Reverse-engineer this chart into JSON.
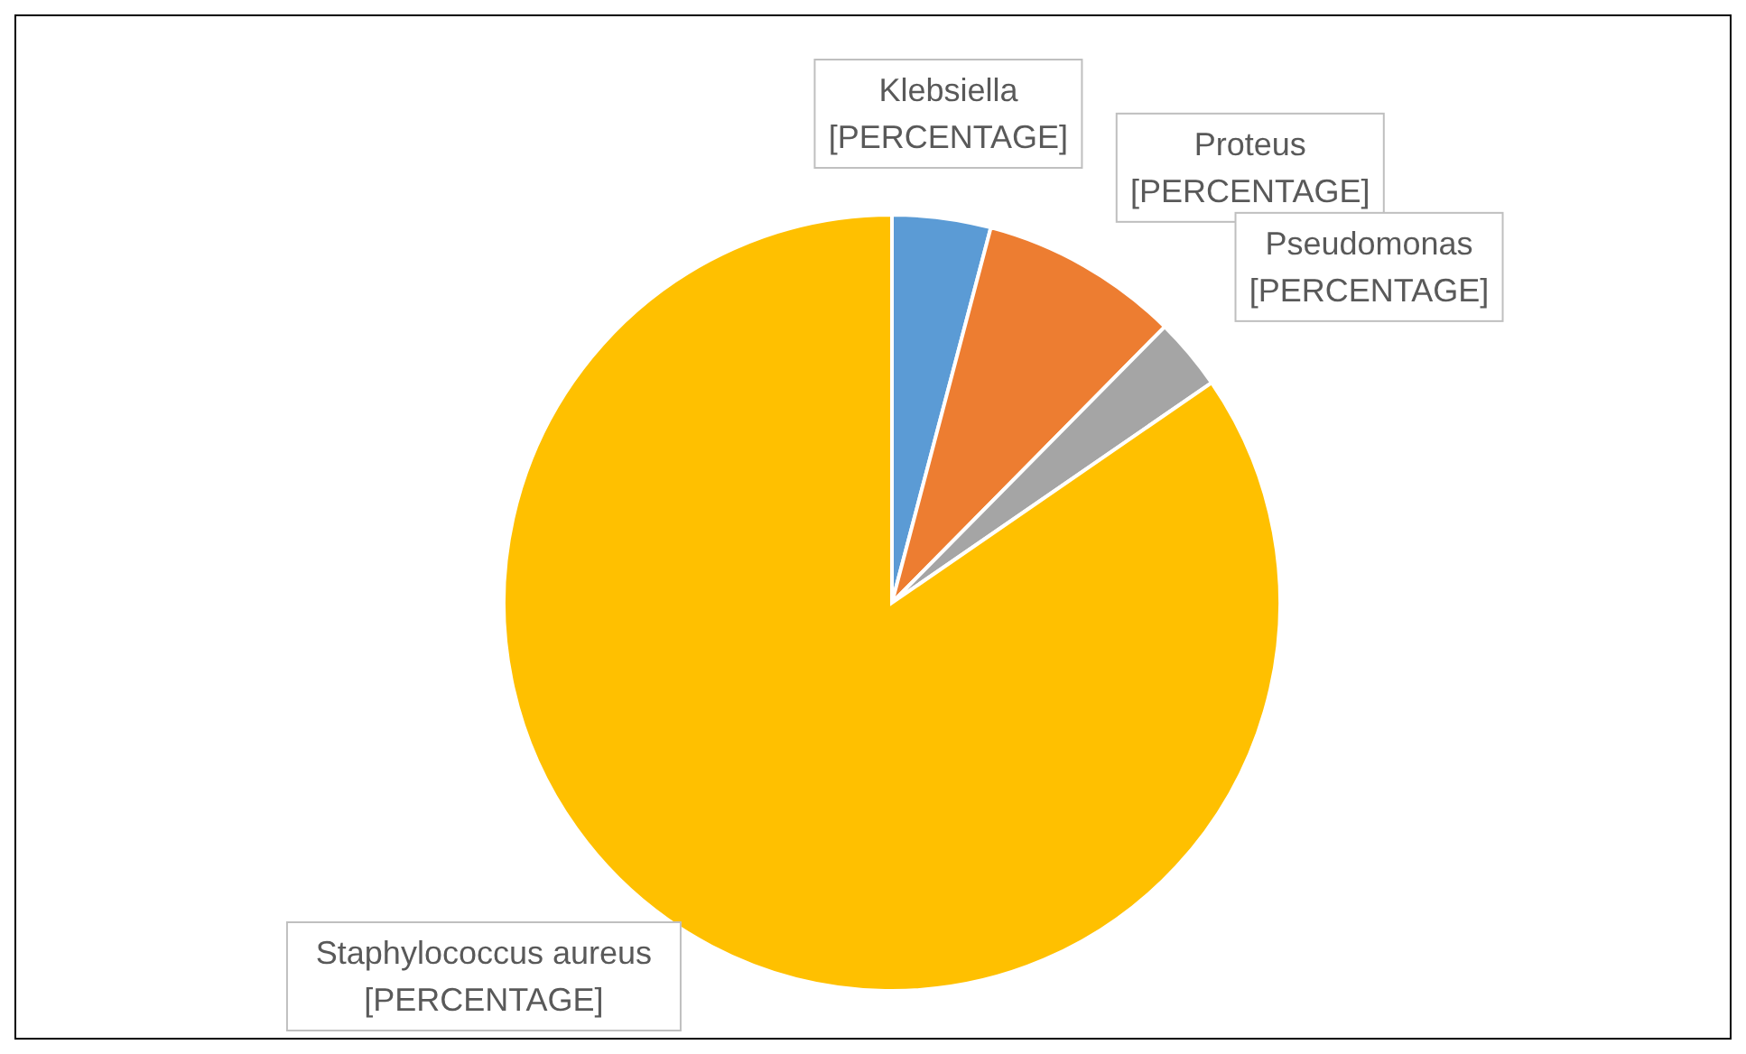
{
  "chart_data": {
    "type": "pie",
    "categories": [
      "Klebsiella",
      "Proteus",
      "Pseudomonas",
      "Staphylococcus aureus"
    ],
    "values": [
      4.1,
      8.3,
      3.0,
      84.6
    ],
    "colors": [
      "#5b9bd5",
      "#ed7d31",
      "#a5a5a5",
      "#ffc000"
    ],
    "value_labels": [
      "[PERCENTAGE]",
      "[PERCENTAGE]",
      "[PERCENTAGE]",
      "[PERCENTAGE]"
    ],
    "legend": false
  }
}
